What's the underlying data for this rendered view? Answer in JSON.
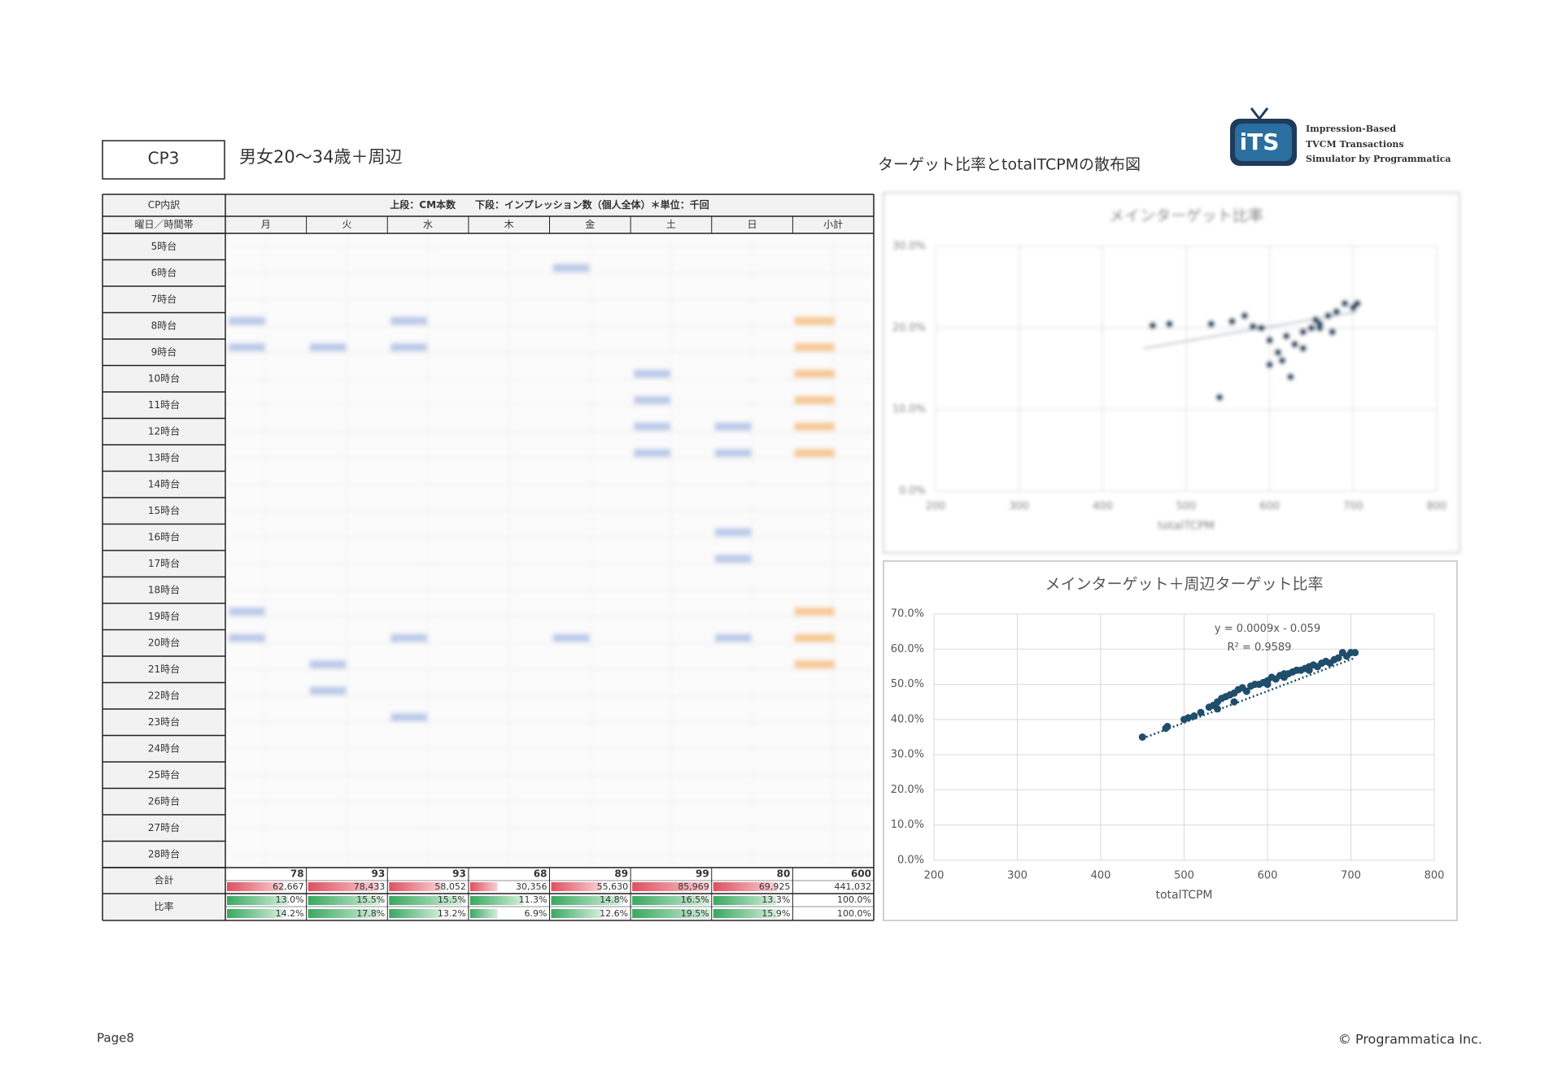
{
  "header": {
    "cp": "CP3",
    "target": "男女20～34歳＋周辺"
  },
  "table": {
    "corner": "CP内訳",
    "note": "上段：CM本数　　下段：インプレッション数（個人全体）＊単位：千回",
    "row_header": "曜日／時間帯",
    "columns": [
      "月",
      "火",
      "水",
      "木",
      "金",
      "土",
      "日",
      "小計"
    ],
    "rows": [
      "5時台",
      "6時台",
      "7時台",
      "8時台",
      "9時台",
      "10時台",
      "11時台",
      "12時台",
      "13時台",
      "14時台",
      "15時台",
      "16時台",
      "17時台",
      "18時台",
      "19時台",
      "20時台",
      "21時台",
      "22時台",
      "23時台",
      "24時台",
      "25時台",
      "26時台",
      "27時台",
      "28時台"
    ],
    "total_label": "合計",
    "ratio_label": "比率",
    "counts": [
      78,
      93,
      93,
      68,
      89,
      99,
      80,
      600
    ],
    "impressions": [
      62667,
      78433,
      58052,
      30356,
      55630,
      85969,
      69925,
      441032
    ],
    "impression_labels": [
      "62,667",
      "78,433",
      "58,052",
      "30,356",
      "55,630",
      "85,969",
      "69,925",
      "441,032"
    ],
    "count_ratio": [
      13.0,
      15.5,
      15.5,
      11.3,
      14.8,
      16.5,
      13.3,
      100.0
    ],
    "count_ratio_labels": [
      "13.0%",
      "15.5%",
      "15.5%",
      "11.3%",
      "14.8%",
      "16.5%",
      "13.3%",
      "100.0%"
    ],
    "impression_ratio": [
      14.2,
      17.8,
      13.2,
      6.9,
      12.6,
      19.5,
      15.9,
      100.0
    ],
    "impression_ratio_labels": [
      "14.2%",
      "17.8%",
      "13.2%",
      "6.9%",
      "12.6%",
      "19.5%",
      "15.9%",
      "100.0%"
    ]
  },
  "charts_title": "ターゲット比率とtotalTCPMの散布図",
  "logo": {
    "mark": "iTS",
    "lines": [
      "Impression-Based",
      "TVCM Transactions",
      "Simulator by Programmatica"
    ]
  },
  "chart_data": [
    {
      "type": "scatter",
      "title": "メインターゲット比率",
      "x_label": "totalTCPM",
      "color": "#1f4e6b",
      "blurred": true,
      "xlim": [
        200,
        800
      ],
      "xticks": [
        200,
        300,
        400,
        500,
        600,
        700,
        800
      ],
      "ylim": [
        0,
        30
      ],
      "yticks": [
        {
          "value": 0,
          "label": "0.0%"
        },
        {
          "value": 10,
          "label": "10.0%"
        },
        {
          "value": 20,
          "label": "20.0%"
        },
        {
          "value": 30,
          "label": "30.0%"
        }
      ],
      "x": [
        460,
        480,
        530,
        555,
        570,
        580,
        590,
        600,
        610,
        615,
        620,
        630,
        640,
        650,
        660,
        670,
        680,
        690,
        700,
        705,
        540,
        625,
        600,
        660,
        675,
        640,
        655
      ],
      "values": [
        20.3,
        20.5,
        20.5,
        20.8,
        21.5,
        20.2,
        20,
        18.5,
        17,
        16,
        19,
        18,
        19.5,
        20,
        20.5,
        21.5,
        22,
        23,
        22.5,
        23,
        11.5,
        14,
        15.5,
        20,
        19.5,
        17.5,
        21
      ],
      "trendline": {
        "x": [
          450,
          705
        ],
        "values": [
          17.5,
          22
        ]
      }
    },
    {
      "type": "scatter",
      "title": "メインターゲット＋周辺ターゲット比率",
      "x_label": "totalTCPM",
      "color": "#1f4e6b",
      "blurred": false,
      "annotations": [
        "y = 0.0009x - 0.059",
        "R² = 0.9589"
      ],
      "xlim": [
        200,
        800
      ],
      "xticks": [
        200,
        300,
        400,
        500,
        600,
        700,
        800
      ],
      "ylim": [
        0,
        70
      ],
      "yticks": [
        {
          "value": 0,
          "label": "0.0%"
        },
        {
          "value": 10,
          "label": "10.0%"
        },
        {
          "value": 20,
          "label": "20.0%"
        },
        {
          "value": 30,
          "label": "30.0%"
        },
        {
          "value": 40,
          "label": "40.0%"
        },
        {
          "value": 50,
          "label": "50.0%"
        },
        {
          "value": 60,
          "label": "60.0%"
        },
        {
          "value": 70,
          "label": "70.0%"
        }
      ],
      "x": [
        450,
        478,
        480,
        500,
        505,
        512,
        520,
        530,
        535,
        540,
        545,
        550,
        555,
        560,
        565,
        570,
        575,
        580,
        585,
        590,
        595,
        600,
        605,
        610,
        615,
        620,
        625,
        630,
        635,
        640,
        645,
        650,
        655,
        660,
        665,
        670,
        675,
        680,
        685,
        690,
        695,
        700,
        705,
        560,
        600,
        620,
        650,
        540
      ],
      "values": [
        35,
        37.5,
        38,
        40,
        40.5,
        41,
        42,
        43.5,
        44,
        45,
        46,
        46.5,
        47,
        47.5,
        48.5,
        49,
        48,
        49.5,
        50,
        50,
        50.5,
        51,
        52,
        51.5,
        52.5,
        53,
        53,
        53.5,
        54,
        54,
        54.5,
        55,
        55.5,
        55,
        56,
        56.5,
        56,
        57,
        57.5,
        59,
        58,
        59,
        59,
        45,
        50,
        52,
        54,
        43
      ],
      "trendline": {
        "x": [
          450,
          705
        ],
        "values": [
          34.6,
          57.5
        ]
      }
    }
  ],
  "footer": {
    "page": "Page8",
    "copyright": "© Programmatica Inc."
  }
}
